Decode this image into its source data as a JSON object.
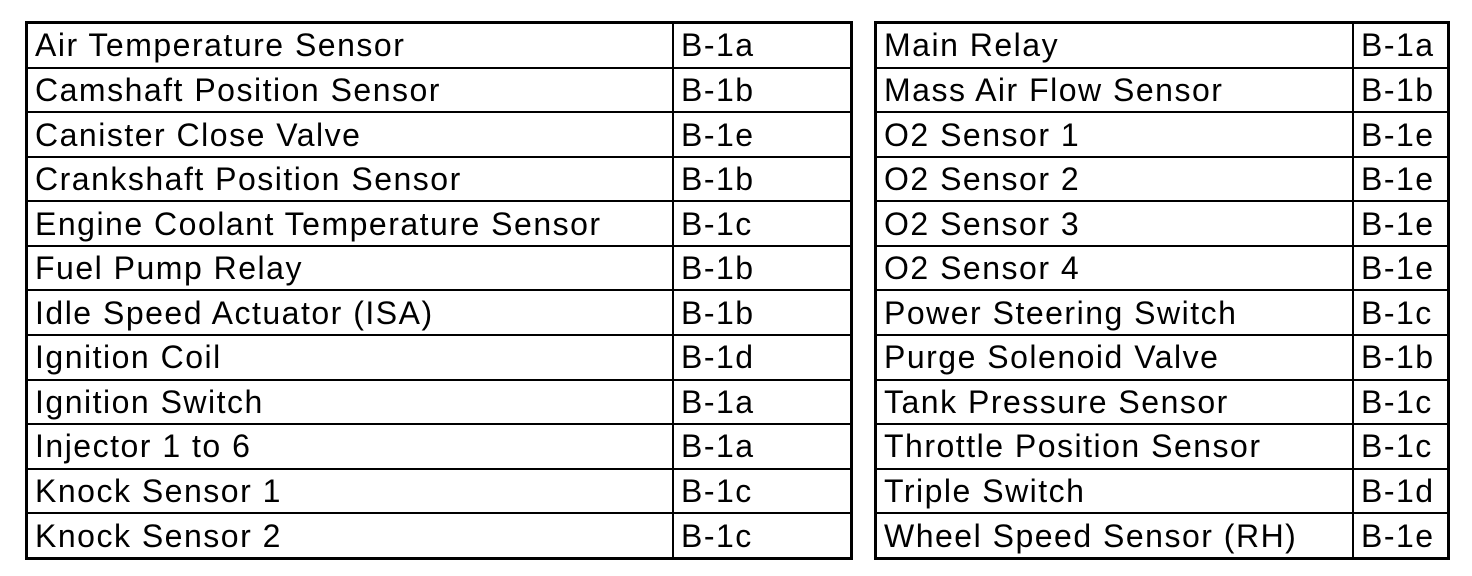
{
  "page": {
    "background_color": "#ffffff",
    "border_color": "#000000",
    "text_color": "#000000"
  },
  "tables": [
    {
      "name": "component-connector-table-left",
      "columns": [
        "component",
        "connector_code"
      ],
      "rows": [
        {
          "component": "Air Temperature Sensor",
          "code": "B-1a"
        },
        {
          "component": "Camshaft Position Sensor",
          "code": "B-1b"
        },
        {
          "component": "Canister Close Valve",
          "code": "B-1e"
        },
        {
          "component": "Crankshaft Position Sensor",
          "code": "B-1b"
        },
        {
          "component": "Engine Coolant Temperature Sensor",
          "code": "B-1c"
        },
        {
          "component": "Fuel Pump Relay",
          "code": "B-1b"
        },
        {
          "component": "Idle Speed Actuator (ISA)",
          "code": "B-1b"
        },
        {
          "component": "Ignition Coil",
          "code": "B-1d"
        },
        {
          "component": "Ignition Switch",
          "code": "B-1a"
        },
        {
          "component": "Injector 1 to 6",
          "code": "B-1a"
        },
        {
          "component": "Knock Sensor 1",
          "code": "B-1c"
        },
        {
          "component": "Knock Sensor 2",
          "code": "B-1c"
        }
      ]
    },
    {
      "name": "component-connector-table-right",
      "columns": [
        "component",
        "connector_code"
      ],
      "rows": [
        {
          "component": "Main Relay",
          "code": "B-1a"
        },
        {
          "component": "Mass Air Flow Sensor",
          "code": "B-1b"
        },
        {
          "component": "O2 Sensor 1",
          "code": "B-1e"
        },
        {
          "component": "O2 Sensor 2",
          "code": "B-1e"
        },
        {
          "component": "O2 Sensor 3",
          "code": "B-1e"
        },
        {
          "component": "O2 Sensor 4",
          "code": "B-1e"
        },
        {
          "component": "Power Steering Switch",
          "code": "B-1c"
        },
        {
          "component": "Purge Solenoid Valve",
          "code": "B-1b"
        },
        {
          "component": "Tank Pressure Sensor",
          "code": "B-1c"
        },
        {
          "component": "Throttle Position Sensor",
          "code": "B-1c"
        },
        {
          "component": "Triple Switch",
          "code": "B-1d"
        },
        {
          "component": "Wheel Speed Sensor (RH)",
          "code": "B-1e"
        }
      ]
    }
  ]
}
